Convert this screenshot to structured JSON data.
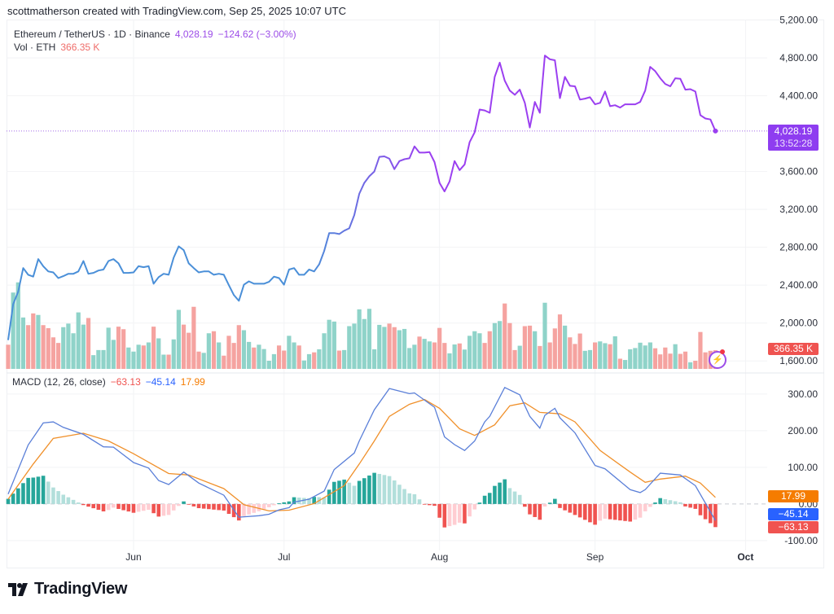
{
  "attribution": "scottmatherson created with TradingView.com, Sep 25, 2025 10:07 UTC",
  "legend": {
    "symbol": "Ethereum / TetherUS · 1D · Binance",
    "price": "4,028.19",
    "change": "−124.62 (−3.00%)",
    "vol_label": "Vol · ETH",
    "vol_value": "366.35 K"
  },
  "price_tag": {
    "price": "4,028.19",
    "countdown": "13:52:28"
  },
  "volume_tag": "366.35 K",
  "macd_legend": {
    "label": "MACD (12, 26, close)",
    "hist": "−63.13",
    "macd": "−45.14",
    "signal": "17.99"
  },
  "macd_tags": {
    "signal": "17.99",
    "macd": "−45.14",
    "hist": "−63.13"
  },
  "logo": "TradingView",
  "icons": {
    "alert": "lightning-alert-icon",
    "logo": "tradingview-logo-icon"
  },
  "colors": {
    "price_line_start": "#4a8fd8",
    "price_line_end": "#9b3ff0",
    "volume_up": "#8fd3c9",
    "volume_down": "#f5a3a0",
    "macd_line": "#5a7fd8",
    "signal_line": "#f0902a",
    "hist_up_strong": "#26a69a",
    "hist_up_weak": "#b2dfdb",
    "hist_down_strong": "#f05350",
    "hist_down_weak": "#ffcdd2",
    "price_tag": "#8e3df0",
    "volume_tag": "#ef5350",
    "signal_tag": "#f57c00",
    "macd_tag": "#2962ff",
    "hist_tag": "#f05350"
  },
  "chart_data": [
    {
      "type": "line",
      "pane": "price",
      "xlim": [
        "2025-05-07",
        "2025-10-05"
      ],
      "ylim": [
        1490,
        5205
      ],
      "yticks": [
        1600,
        2000,
        2400,
        2800,
        3200,
        3600,
        4400,
        4800,
        5200
      ],
      "xticks": [
        {
          "label": "Jun",
          "date": "2025-06-01"
        },
        {
          "label": "Jul",
          "date": "2025-07-01"
        },
        {
          "label": "Aug",
          "date": "2025-08-01"
        },
        {
          "label": "Sep",
          "date": "2025-09-01"
        },
        {
          "label": "Oct",
          "date": "2025-10-01"
        }
      ],
      "grid": true,
      "last_price": 4028.19,
      "x": [
        "2025-05-07",
        "2025-05-08",
        "2025-05-09",
        "2025-05-10",
        "2025-05-11",
        "2025-05-12",
        "2025-05-13",
        "2025-05-14",
        "2025-05-15",
        "2025-05-16",
        "2025-05-17",
        "2025-05-18",
        "2025-05-19",
        "2025-05-20",
        "2025-05-21",
        "2025-05-22",
        "2025-05-23",
        "2025-05-24",
        "2025-05-25",
        "2025-05-26",
        "2025-05-27",
        "2025-05-28",
        "2025-05-29",
        "2025-05-30",
        "2025-05-31",
        "2025-06-01",
        "2025-06-02",
        "2025-06-03",
        "2025-06-04",
        "2025-06-05",
        "2025-06-06",
        "2025-06-07",
        "2025-06-08",
        "2025-06-09",
        "2025-06-10",
        "2025-06-11",
        "2025-06-12",
        "2025-06-13",
        "2025-06-14",
        "2025-06-15",
        "2025-06-16",
        "2025-06-17",
        "2025-06-18",
        "2025-06-19",
        "2025-06-20",
        "2025-06-21",
        "2025-06-22",
        "2025-06-23",
        "2025-06-24",
        "2025-06-25",
        "2025-06-26",
        "2025-06-27",
        "2025-06-28",
        "2025-06-29",
        "2025-06-30",
        "2025-07-01",
        "2025-07-02",
        "2025-07-03",
        "2025-07-04",
        "2025-07-05",
        "2025-07-06",
        "2025-07-07",
        "2025-07-08",
        "2025-07-09",
        "2025-07-10",
        "2025-07-11",
        "2025-07-12",
        "2025-07-13",
        "2025-07-14",
        "2025-07-15",
        "2025-07-16",
        "2025-07-17",
        "2025-07-18",
        "2025-07-19",
        "2025-07-20",
        "2025-07-21",
        "2025-07-22",
        "2025-07-23",
        "2025-07-24",
        "2025-07-25",
        "2025-07-26",
        "2025-07-27",
        "2025-07-28",
        "2025-07-29",
        "2025-07-30",
        "2025-07-31",
        "2025-08-01",
        "2025-08-02",
        "2025-08-03",
        "2025-08-04",
        "2025-08-05",
        "2025-08-06",
        "2025-08-07",
        "2025-08-08",
        "2025-08-09",
        "2025-08-10",
        "2025-08-11",
        "2025-08-12",
        "2025-08-13",
        "2025-08-14",
        "2025-08-15",
        "2025-08-16",
        "2025-08-17",
        "2025-08-18",
        "2025-08-19",
        "2025-08-20",
        "2025-08-21",
        "2025-08-22",
        "2025-08-23",
        "2025-08-24",
        "2025-08-25",
        "2025-08-26",
        "2025-08-27",
        "2025-08-28",
        "2025-08-29",
        "2025-08-30",
        "2025-08-31",
        "2025-09-01",
        "2025-09-02",
        "2025-09-03",
        "2025-09-04",
        "2025-09-05",
        "2025-09-06",
        "2025-09-07",
        "2025-09-08",
        "2025-09-09",
        "2025-09-10",
        "2025-09-11",
        "2025-09-12",
        "2025-09-13",
        "2025-09-14",
        "2025-09-15",
        "2025-09-16",
        "2025-09-17",
        "2025-09-18",
        "2025-09-19",
        "2025-09-20",
        "2025-09-21",
        "2025-09-22",
        "2025-09-23",
        "2025-09-24",
        "2025-09-25"
      ],
      "close": [
        1820,
        2200,
        2330,
        2580,
        2510,
        2490,
        2675,
        2600,
        2545,
        2535,
        2475,
        2495,
        2520,
        2520,
        2545,
        2655,
        2520,
        2530,
        2555,
        2565,
        2655,
        2675,
        2630,
        2530,
        2530,
        2535,
        2600,
        2590,
        2600,
        2415,
        2485,
        2520,
        2510,
        2690,
        2810,
        2770,
        2630,
        2580,
        2535,
        2545,
        2545,
        2510,
        2520,
        2510,
        2400,
        2295,
        2235,
        2405,
        2440,
        2415,
        2415,
        2415,
        2435,
        2490,
        2475,
        2405,
        2565,
        2580,
        2510,
        2510,
        2565,
        2545,
        2620,
        2760,
        2950,
        2950,
        2940,
        2975,
        3000,
        3140,
        3365,
        3480,
        3550,
        3600,
        3755,
        3760,
        3735,
        3625,
        3710,
        3730,
        3740,
        3865,
        3800,
        3800,
        3805,
        3700,
        3480,
        3390,
        3495,
        3710,
        3615,
        3675,
        3910,
        4015,
        4255,
        4245,
        4220,
        4600,
        4750,
        4560,
        4455,
        4410,
        4465,
        4325,
        4065,
        4335,
        4220,
        4825,
        4785,
        4775,
        4375,
        4600,
        4505,
        4500,
        4360,
        4370,
        4385,
        4310,
        4325,
        4445,
        4290,
        4300,
        4275,
        4310,
        4310,
        4310,
        4335,
        4455,
        4705,
        4660,
        4585,
        4525,
        4500,
        4585,
        4580,
        4465,
        4470,
        4445,
        4195,
        4160,
        4150,
        4028.19
      ],
      "volume_k": [
        475,
        1500,
        1700,
        1010,
        860,
        1090,
        1060,
        860,
        800,
        620,
        510,
        820,
        890,
        700,
        1110,
        870,
        1000,
        270,
        370,
        370,
        810,
        570,
        830,
        780,
        420,
        340,
        475,
        460,
        520,
        830,
        600,
        280,
        280,
        580,
        1160,
        870,
        710,
        1220,
        340,
        315,
        700,
        740,
        520,
        260,
        650,
        510,
        860,
        760,
        530,
        420,
        475,
        390,
        160,
        290,
        460,
        360,
        650,
        520,
        460,
        165,
        290,
        325,
        385,
        700,
        965,
        930,
        360,
        370,
        840,
        890,
        1170,
        980,
        1180,
        385,
        865,
        825,
        890,
        820,
        760,
        785,
        410,
        475,
        635,
        590,
        540,
        520,
        805,
        510,
        305,
        480,
        500,
        380,
        650,
        740,
        700,
        510,
        740,
        900,
        940,
        1285,
        900,
        370,
        455,
        840,
        850,
        740,
        450,
        1300,
        520,
        795,
        1070,
        850,
        620,
        490,
        695,
        355,
        370,
        520,
        540,
        505,
        485,
        640,
        200,
        175,
        385,
        410,
        515,
        460,
        520,
        405,
        285,
        420,
        300,
        485,
        295,
        340,
        130,
        160,
        725,
        325,
        355,
        366.35
      ]
    },
    {
      "type": "line",
      "pane": "macd",
      "ylim": [
        -158,
        353
      ],
      "yticks": [
        -100,
        0,
        100,
        200,
        300
      ],
      "macd": [
        [
          "2025-05-07",
          27
        ],
        [
          "2025-05-11",
          161
        ],
        [
          "2025-05-14",
          221
        ],
        [
          "2025-05-16",
          224
        ],
        [
          "2025-05-18",
          209
        ],
        [
          "2025-05-22",
          190
        ],
        [
          "2025-05-26",
          156
        ],
        [
          "2025-05-28",
          155
        ],
        [
          "2025-06-01",
          113
        ],
        [
          "2025-06-04",
          98
        ],
        [
          "2025-06-06",
          64
        ],
        [
          "2025-06-08",
          53
        ],
        [
          "2025-06-11",
          87
        ],
        [
          "2025-06-14",
          57
        ],
        [
          "2025-06-19",
          24
        ],
        [
          "2025-06-22",
          -36
        ],
        [
          "2025-06-26",
          -32
        ],
        [
          "2025-06-28",
          -28
        ],
        [
          "2025-06-30",
          -16
        ],
        [
          "2025-07-02",
          -10
        ],
        [
          "2025-07-03",
          5
        ],
        [
          "2025-07-06",
          13
        ],
        [
          "2025-07-09",
          35
        ],
        [
          "2025-07-11",
          94
        ],
        [
          "2025-07-15",
          139
        ],
        [
          "2025-07-16",
          172
        ],
        [
          "2025-07-19",
          257
        ],
        [
          "2025-07-22",
          315
        ],
        [
          "2025-07-26",
          301
        ],
        [
          "2025-07-27",
          303
        ],
        [
          "2025-07-31",
          264
        ],
        [
          "2025-08-02",
          183
        ],
        [
          "2025-08-04",
          162
        ],
        [
          "2025-08-06",
          146
        ],
        [
          "2025-08-08",
          172
        ],
        [
          "2025-08-10",
          224
        ],
        [
          "2025-08-11",
          239
        ],
        [
          "2025-08-14",
          318
        ],
        [
          "2025-08-17",
          298
        ],
        [
          "2025-08-19",
          239
        ],
        [
          "2025-08-21",
          207
        ],
        [
          "2025-08-22",
          242
        ],
        [
          "2025-08-24",
          261
        ],
        [
          "2025-08-25",
          235
        ],
        [
          "2025-08-28",
          194
        ],
        [
          "2025-09-01",
          105
        ],
        [
          "2025-09-03",
          96
        ],
        [
          "2025-09-08",
          39
        ],
        [
          "2025-09-10",
          31
        ],
        [
          "2025-09-11",
          39
        ],
        [
          "2025-09-14",
          84
        ],
        [
          "2025-09-18",
          79
        ],
        [
          "2025-09-21",
          50
        ],
        [
          "2025-09-25",
          -45.14
        ]
      ],
      "signal": [
        [
          "2025-05-07",
          13
        ],
        [
          "2025-05-12",
          109
        ],
        [
          "2025-05-16",
          179
        ],
        [
          "2025-05-22",
          193
        ],
        [
          "2025-05-27",
          172
        ],
        [
          "2025-06-01",
          137
        ],
        [
          "2025-06-08",
          83
        ],
        [
          "2025-06-12",
          79
        ],
        [
          "2025-06-19",
          42
        ],
        [
          "2025-06-23",
          -2
        ],
        [
          "2025-06-28",
          -19
        ],
        [
          "2025-07-02",
          -17
        ],
        [
          "2025-07-07",
          1
        ],
        [
          "2025-07-13",
          50
        ],
        [
          "2025-07-16",
          109
        ],
        [
          "2025-07-19",
          172
        ],
        [
          "2025-07-22",
          239
        ],
        [
          "2025-07-26",
          272
        ],
        [
          "2025-07-29",
          285
        ],
        [
          "2025-08-01",
          261
        ],
        [
          "2025-08-05",
          205
        ],
        [
          "2025-08-08",
          187
        ],
        [
          "2025-08-12",
          216
        ],
        [
          "2025-08-15",
          268
        ],
        [
          "2025-08-18",
          276
        ],
        [
          "2025-08-21",
          250
        ],
        [
          "2025-08-25",
          246
        ],
        [
          "2025-08-28",
          224
        ],
        [
          "2025-09-02",
          146
        ],
        [
          "2025-09-08",
          87
        ],
        [
          "2025-09-11",
          59
        ],
        [
          "2025-09-14",
          68
        ],
        [
          "2025-09-19",
          76
        ],
        [
          "2025-09-22",
          57
        ],
        [
          "2025-09-25",
          17.99
        ]
      ]
    }
  ]
}
